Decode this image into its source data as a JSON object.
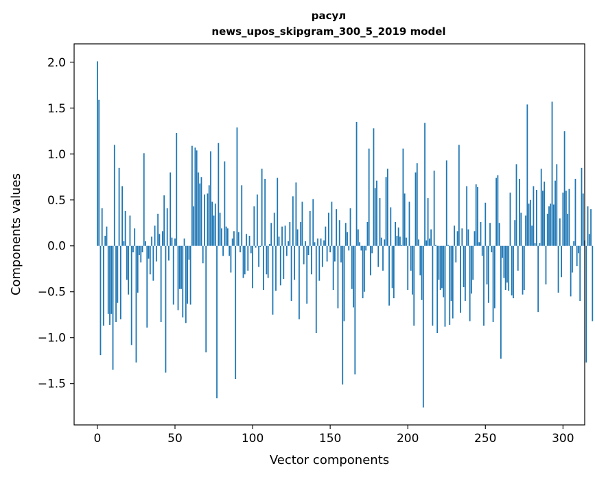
{
  "chart_data": {
    "type": "bar",
    "title_line1": "расул",
    "title_line2": "news_upos_skipgram_300_5_2019 model",
    "xlabel": "Vector components",
    "ylabel": "Components values",
    "xlim": [
      -15,
      314
    ],
    "ylim": [
      -1.95,
      2.2
    ],
    "xticks": [
      0,
      50,
      100,
      150,
      200,
      250,
      300
    ],
    "xtick_labels": [
      "0",
      "50",
      "100",
      "150",
      "200",
      "250",
      "300"
    ],
    "yticks": [
      2.0,
      1.5,
      1.0,
      0.5,
      0.0,
      -0.5,
      -1.0,
      -1.5
    ],
    "ytick_labels": [
      "2.0",
      "1.5",
      "1.0",
      "0.5",
      "0.0",
      "−0.5",
      "−1.0",
      "−1.5"
    ],
    "bar_color": "#1f77b4",
    "values": [
      2.01,
      1.59,
      -1.19,
      0.41,
      -0.87,
      0.11,
      0.21,
      -0.74,
      -0.86,
      -0.74,
      -1.35,
      1.1,
      -0.83,
      -0.62,
      0.85,
      -0.8,
      0.65,
      0.05,
      0.38,
      -0.37,
      -0.53,
      0.33,
      -1.08,
      -0.07,
      0.19,
      -1.27,
      -0.51,
      -0.1,
      -0.18,
      -0.07,
      1.01,
      0.05,
      -0.89,
      -0.14,
      -0.31,
      0.1,
      -0.38,
      0.22,
      -0.17,
      0.35,
      0.13,
      -0.83,
      0.16,
      0.55,
      -1.38,
      0.41,
      -0.16,
      0.8,
      0.09,
      -0.64,
      0.08,
      1.23,
      -0.7,
      -0.47,
      -0.47,
      -0.78,
      0.08,
      -0.84,
      -0.63,
      -0.15,
      -0.64,
      1.09,
      0.43,
      1.07,
      1.04,
      0.8,
      0.68,
      0.75,
      -0.19,
      0.56,
      -1.16,
      0.57,
      0.66,
      1.03,
      0.48,
      0.33,
      0.46,
      -1.66,
      1.12,
      0.36,
      0.19,
      -0.11,
      0.92,
      0.21,
      0.19,
      -0.11,
      -0.29,
      0.08,
      0.16,
      -1.45,
      1.29,
      0.15,
      -0.07,
      0.66,
      -0.35,
      -0.31,
      0.13,
      -0.27,
      0.11,
      -0.08,
      -0.46,
      0.43,
      -0.02,
      0.56,
      -0.23,
      -0.01,
      0.84,
      -0.48,
      0.73,
      -0.31,
      -0.35,
      0.02,
      0.25,
      -0.75,
      0.36,
      -0.49,
      0.74,
      0.1,
      -0.43,
      0.21,
      -0.36,
      0.22,
      -0.11,
      0.05,
      0.26,
      -0.6,
      0.54,
      -0.37,
      0.69,
      0.18,
      -0.8,
      0.26,
      0.48,
      -0.2,
      0.05,
      -0.63,
      -0.1,
      0.38,
      -0.31,
      0.51,
      0.04,
      -0.95,
      0.08,
      -0.38,
      0.08,
      -0.23,
      0.06,
      0.21,
      -0.17,
      0.36,
      -0.07,
      0.48,
      -0.48,
      -0.17,
      0.4,
      -0.68,
      0.28,
      -0.18,
      -1.51,
      -0.82,
      0.25,
      0.15,
      -0.05,
      0.41,
      -0.47,
      -0.67,
      -1.4,
      1.35,
      0.18,
      0.04,
      -0.05,
      -0.57,
      -0.5,
      -0.05,
      0.26,
      1.06,
      -0.32,
      -0.08,
      1.28,
      0.63,
      0.71,
      -0.23,
      0.52,
      0.09,
      -0.27,
      0.07,
      0.75,
      0.84,
      -0.65,
      0.42,
      -0.46,
      -0.57,
      0.26,
      0.11,
      0.2,
      0.1,
      0.01,
      1.06,
      0.57,
      0.09,
      -0.48,
      0.48,
      -0.27,
      -0.53,
      -0.87,
      0.8,
      0.9,
      0.07,
      -0.32,
      -0.59,
      -1.76,
      1.34,
      0.06,
      0.52,
      0.08,
      0.18,
      -0.87,
      0.82,
      0.01,
      -0.95,
      -0.37,
      -0.48,
      -0.46,
      -0.56,
      -0.88,
      0.93,
      0.01,
      -0.86,
      -0.6,
      -0.79,
      0.22,
      -0.18,
      0.16,
      1.1,
      -0.73,
      0.19,
      -0.45,
      -0.6,
      0.65,
      0.18,
      -0.82,
      -0.52,
      -0.37,
      0.16,
      0.67,
      0.64,
      0.04,
      0.26,
      -0.11,
      -0.87,
      0.47,
      -0.42,
      -0.62,
      0.25,
      -0.07,
      -0.83,
      -0.68,
      0.74,
      0.77,
      0.25,
      -1.23,
      -0.13,
      -0.35,
      -0.48,
      -0.4,
      -0.49,
      0.58,
      -0.54,
      -0.57,
      0.28,
      0.89,
      -0.27,
      0.73,
      0.36,
      -0.53,
      -0.48,
      0.33,
      1.54,
      0.46,
      0.5,
      0.22,
      0.65,
      0.03,
      0.61,
      -0.72,
      0.03,
      0.84,
      0.6,
      0.7,
      -0.42,
      0.35,
      0.43,
      0.46,
      1.57,
      0.45,
      0.71,
      0.89,
      -0.51,
      0.3,
      -0.34,
      0.58,
      1.25,
      0.6,
      0.35,
      0.62,
      -0.55,
      -0.29,
      0.05,
      0.73,
      -0.22,
      -0.08,
      -0.6,
      0.85,
      0.57,
      0.06,
      -1.27,
      0.43,
      0.13,
      0.4,
      -0.82
    ]
  }
}
